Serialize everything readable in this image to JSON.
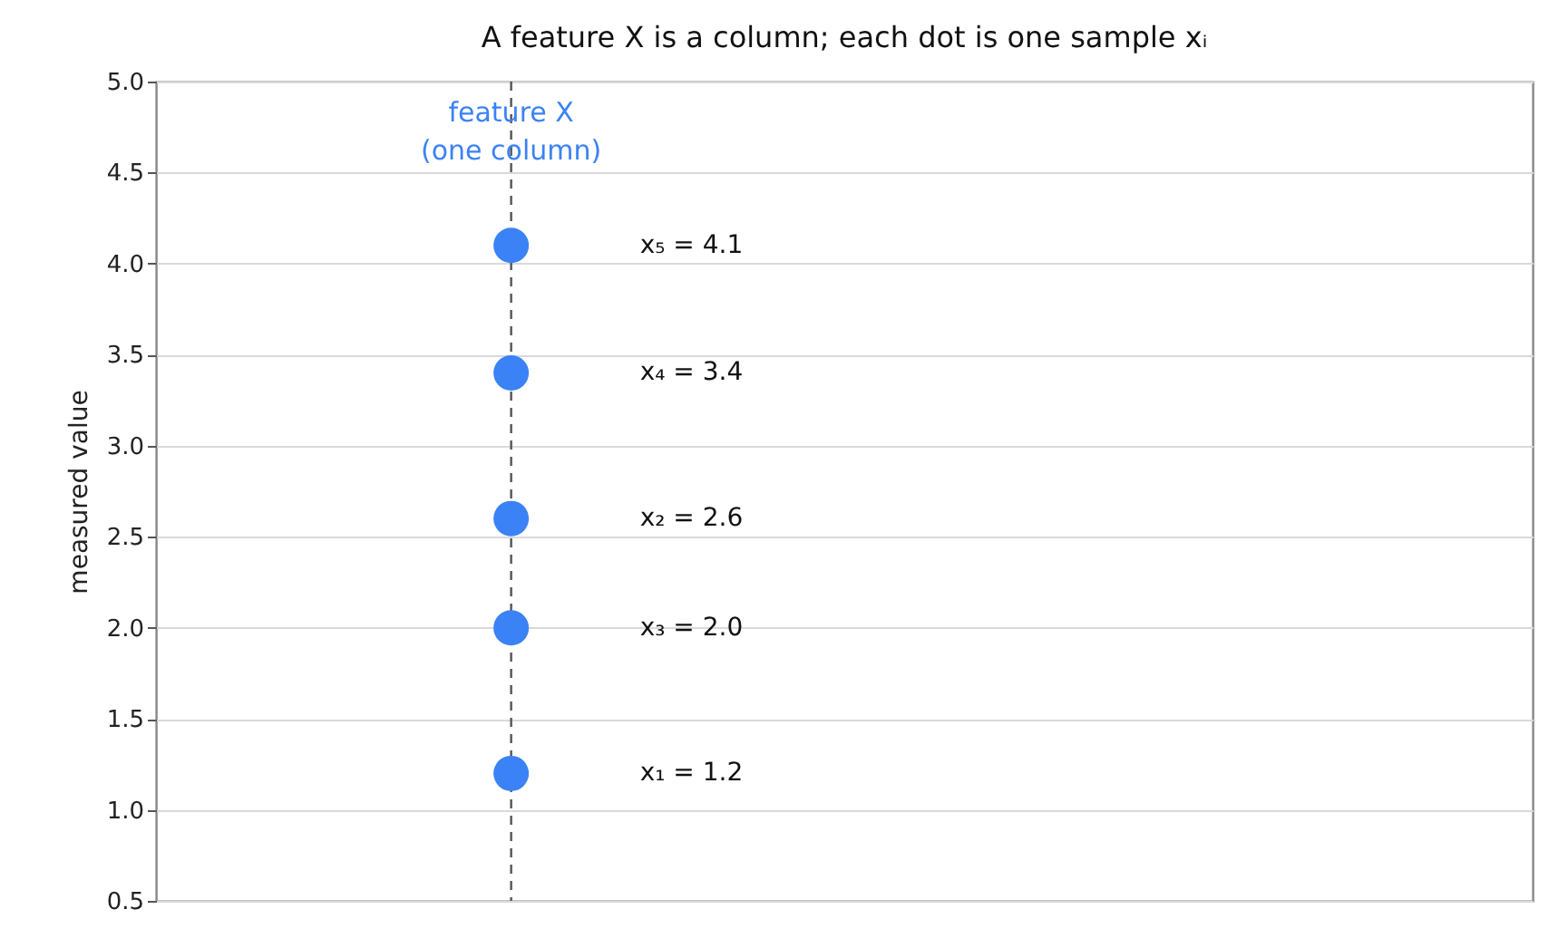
{
  "chart_data": {
    "type": "scatter",
    "title": "A feature X is a column; each dot is one sample xᵢ",
    "ylabel": "measured value",
    "categories": [
      null
    ],
    "series": [
      {
        "color": "#3b82f6",
        "values": [
          1.2
        ]
      },
      {
        "color": "#3b82f6",
        "values": [
          2.6
        ]
      },
      {
        "color": "#3b82f6",
        "values": [
          2.0
        ]
      },
      {
        "color": "#3b82f6",
        "values": [
          3.4
        ]
      },
      {
        "color": "#3b82f6",
        "values": [
          4.1
        ]
      }
    ],
    "ylim": [
      0.5,
      5.0
    ],
    "yticks": [
      {
        "value": 0.5,
        "label": "0.5"
      },
      {
        "value": 1,
        "label": "1.0"
      },
      {
        "value": 1.5,
        "label": "1.5"
      },
      {
        "value": 2,
        "label": "2.0"
      },
      {
        "value": 2.5,
        "label": "2.5"
      },
      {
        "value": 3,
        "label": "3.0"
      },
      {
        "value": 3.5,
        "label": "3.5"
      },
      {
        "value": 4,
        "label": "4.0"
      },
      {
        "value": 4.5,
        "label": "4.5"
      },
      {
        "value": 5,
        "label": "5.0"
      }
    ],
    "tick_labels": "y",
    "grid": "y",
    "ref_lines": [
      {
        "axis": "x",
        "label": "feature  X\n(one column)",
        "color": "#555555",
        "line_style": "dashed"
      }
    ],
    "annotations": [
      "x₁ = 1.2",
      "x₂ = 2.6",
      "x₃ = 2.0",
      "x₄ = 3.4",
      "x₅ = 4.1"
    ]
  }
}
